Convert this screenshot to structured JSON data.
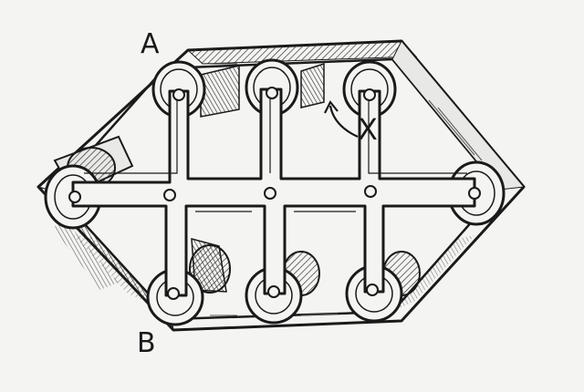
{
  "labels": {
    "a": "A",
    "b": "B",
    "x": "X"
  },
  "colors": {
    "paper": "#f4f4f2",
    "ink": "#1a1a1a",
    "shade": "#555555"
  }
}
